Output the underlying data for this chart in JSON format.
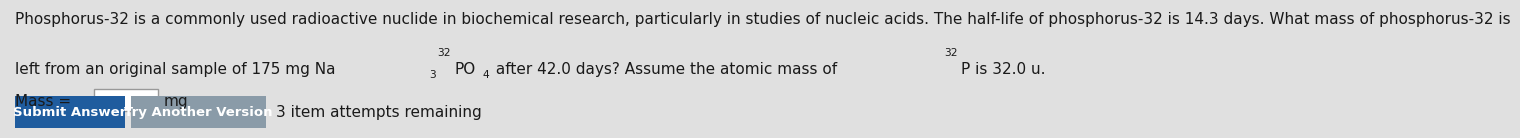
{
  "bg_color": "#e0e0e0",
  "text_line1": "Phosphorus-32 is a commonly used radioactive nuclide in biochemical research, particularly in studies of nucleic acids. The half-life of phosphorus-32 is 14.3 days. What mass of phosphorus-32 is",
  "line2_prefix": "left from an original sample of 175 mg Na",
  "line2_middle": "PO",
  "line2_suffix": " after 42.0 days? Assume the atomic mass of ",
  "line2_end": "P is 32.0 u.",
  "sub3": "3",
  "super32a": "32",
  "sub4": "4",
  "super32b": "32",
  "mass_label": "Mass = ",
  "mass_unit": "mg",
  "submit_btn_text": "Submit Answer",
  "submit_btn_color": "#1f5c9e",
  "try_btn_text": "Try Another Version",
  "try_btn_color": "#8a9ba8",
  "attempts_text": "3 item attempts remaining",
  "font_size": 11.0,
  "text_color": "#1a1a1a",
  "input_box_color": "#ffffff",
  "input_box_border": "#999999"
}
